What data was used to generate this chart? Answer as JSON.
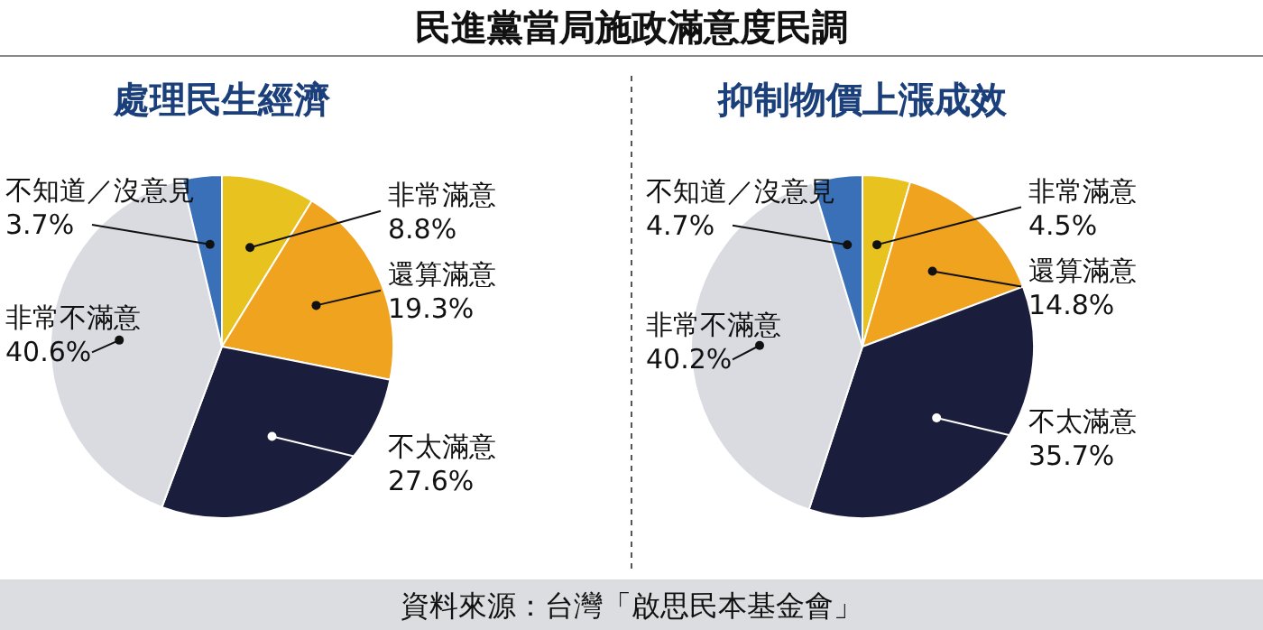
{
  "chart_data": [
    {
      "type": "other",
      "title": "民進黨當局施政滿意度民調",
      "annotations": [
        "資料來源：台灣「啟思民本基金會」"
      ]
    },
    {
      "type": "pie",
      "title": "處理民生經濟",
      "categories": [
        "非常滿意",
        "還算滿意",
        "不太滿意",
        "非常不滿意",
        "不知道／沒意見"
      ],
      "values": [
        8.8,
        19.3,
        27.6,
        40.6,
        3.7
      ],
      "value_labels": [
        "8.8%",
        "19.3%",
        "27.6%",
        "40.6%",
        "3.7%"
      ],
      "colors": [
        "#e8c21e",
        "#f0a31e",
        "#1b1d3c",
        "#d9dbe0",
        "#3a70b8"
      ]
    },
    {
      "type": "pie",
      "title": "抑制物價上漲成效",
      "categories": [
        "非常滿意",
        "還算滿意",
        "不太滿意",
        "非常不滿意",
        "不知道／沒意見"
      ],
      "values": [
        4.5,
        14.8,
        35.7,
        40.2,
        4.7
      ],
      "value_labels": [
        "4.5%",
        "14.8%",
        "35.7%",
        "40.2%",
        "4.7%"
      ],
      "colors": [
        "#e8c21e",
        "#f0a31e",
        "#1b1d3c",
        "#d9dbe0",
        "#3a70b8"
      ]
    }
  ]
}
